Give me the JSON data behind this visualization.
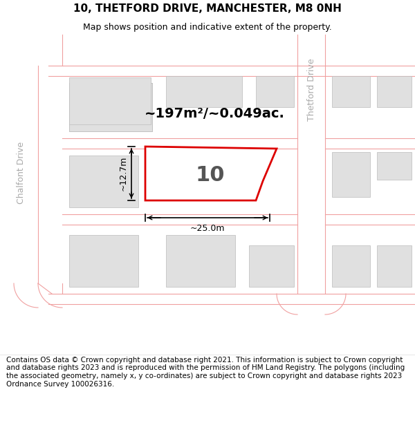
{
  "title": "10, THETFORD DRIVE, MANCHESTER, M8 0NH",
  "subtitle": "Map shows position and indicative extent of the property.",
  "area_text": "~197m²/~0.049ac.",
  "plot_number": "10",
  "dim_width": "~25.0m",
  "dim_height": "~12.7m",
  "map_bg": "#ffffff",
  "building_color": "#e0e0e0",
  "building_edge": "#bbbbbb",
  "plot_fill": "#ffffff",
  "plot_edge_color": "#dd0000",
  "road_line_color": "#f0a0a0",
  "street_label_color": "#aaaaaa",
  "footer_text": "Contains OS data © Crown copyright and database right 2021. This information is subject to Crown copyright and database rights 2023 and is reproduced with the permission of HM Land Registry. The polygons (including the associated geometry, namely x, y co-ordinates) are subject to Crown copyright and database rights 2023 Ordnance Survey 100026316.",
  "chalfont_drive_label": "Chalfont Drive",
  "thetford_drive_label": "Thetford Drive",
  "title_fontsize": 11,
  "subtitle_fontsize": 9,
  "footer_fontsize": 7.5,
  "area_fontsize": 14,
  "plot_num_fontsize": 22
}
